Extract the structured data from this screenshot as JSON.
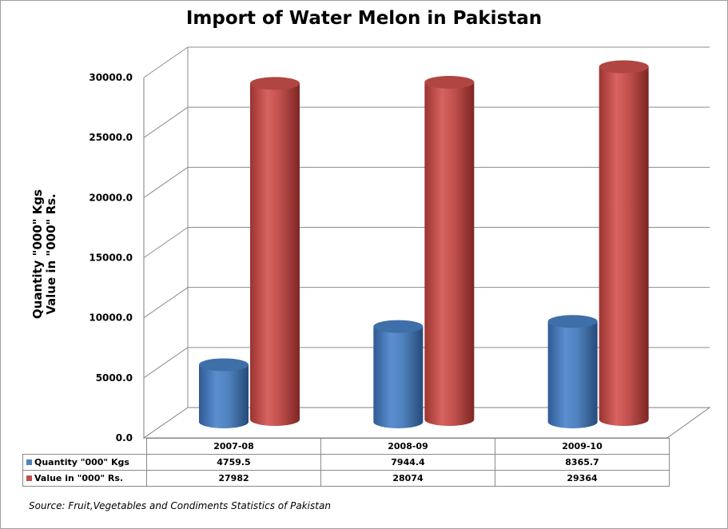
{
  "chart_data": {
    "type": "bar",
    "title": "Import of Water Melon in Pakistan",
    "ylabel_lines": [
      "Quantity \"000\" Kgs",
      "Value in \"000\" Rs."
    ],
    "categories": [
      "2007-08",
      "2008-09",
      "2009-10"
    ],
    "series": [
      {
        "name": "Quantity \"000\" Kgs",
        "values": [
          4759.5,
          7944.4,
          8365.7
        ],
        "display": [
          "4759.5",
          "7944.4",
          "8365.7"
        ],
        "color": "#4f81bd"
      },
      {
        "name": "Value in \"000\" Rs.",
        "values": [
          27982,
          28074,
          29364
        ],
        "display": [
          "27982",
          "28074",
          "29364"
        ],
        "color": "#c0504d"
      }
    ],
    "ylim": [
      0,
      30000
    ],
    "yticks": [
      0,
      5000,
      10000,
      15000,
      20000,
      25000,
      30000
    ],
    "ytick_labels": [
      "0.0",
      "5000.0",
      "10000.0",
      "15000.0",
      "20000.0",
      "25000.0",
      "30000.0"
    ],
    "grid": true,
    "legend": "data-table",
    "style": "3d-cylinder",
    "source": "Source: Fruit,Vegetables and Condiments Statistics of Pakistan"
  }
}
